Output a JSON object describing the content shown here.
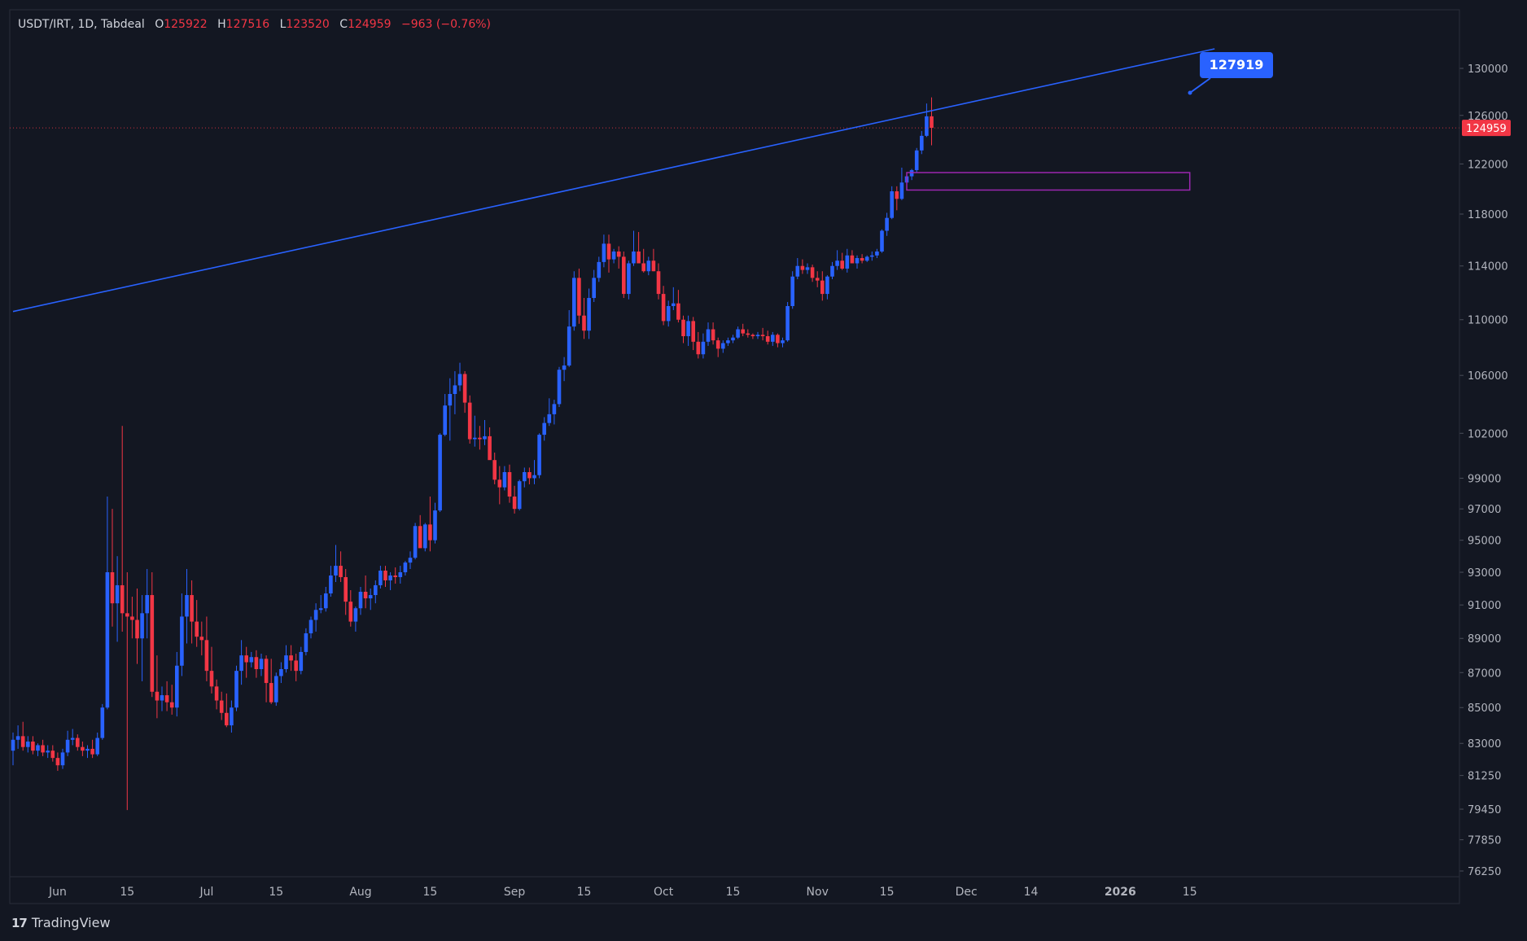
{
  "header": {
    "symbol": "USDT/IRT, 1D, Tabdeal",
    "open_label": "O",
    "open": "125922",
    "high_label": "H",
    "high": "127516",
    "low_label": "L",
    "low": "123520",
    "close_label": "C",
    "close": "124959",
    "change": "−963 (−0.76%)"
  },
  "footer": {
    "brand": "TradingView",
    "logo": "17"
  },
  "colors": {
    "background": "#131722",
    "up": "#2962ff",
    "down": "#f23645",
    "trendline": "#2962ff",
    "zone": "#9c27b0",
    "text": "#b2b5be"
  },
  "chart_data": {
    "type": "candlestick",
    "symbol": "USDT/IRT",
    "interval": "1D",
    "y_axis": {
      "scale": "log",
      "ticks": [
        "130000",
        "126000",
        "122000",
        "118000",
        "114000",
        "110000",
        "106000",
        "102000",
        "99000",
        "97000",
        "95000",
        "93000",
        "91000",
        "89000",
        "87000",
        "85000",
        "83000",
        "81250",
        "79450",
        "77850",
        "76250"
      ]
    },
    "x_axis": {
      "ticks": [
        "Jun",
        "15",
        "Jul",
        "15",
        "Aug",
        "15",
        "Sep",
        "15",
        "Oct",
        "15",
        "Nov",
        "15",
        "Dec",
        "14",
        "2026",
        "15"
      ],
      "tick_dates": [
        "2025-06-01",
        "2025-06-15",
        "2025-07-01",
        "2025-07-15",
        "2025-08-01",
        "2025-08-15",
        "2025-09-01",
        "2025-09-15",
        "2025-10-01",
        "2025-10-15",
        "2025-11-01",
        "2025-11-15",
        "2025-12-01",
        "2025-12-14",
        "2026-01-01",
        "2026-01-15"
      ]
    },
    "start_date": "2025-05-23",
    "last_price": "124959",
    "trendline": {
      "start": [
        "2025-05-23",
        110600
      ],
      "end": [
        "2026-01-20",
        131700
      ]
    },
    "trendline_label": "127919",
    "zone": {
      "from": "2025-11-19",
      "to": "2026-01-15",
      "low": 119900,
      "high": 121300
    },
    "candles_ohlc": [
      [
        82600,
        83600,
        81800,
        83200
      ],
      [
        83200,
        84000,
        82700,
        83400
      ],
      [
        83400,
        84200,
        82600,
        82800
      ],
      [
        82800,
        83400,
        82500,
        83100
      ],
      [
        83100,
        83400,
        82400,
        82600
      ],
      [
        82600,
        83000,
        82300,
        82900
      ],
      [
        82900,
        83200,
        82300,
        82500
      ],
      [
        82500,
        82900,
        82200,
        82600
      ],
      [
        82600,
        82900,
        82000,
        82200
      ],
      [
        82200,
        82500,
        81500,
        81800
      ],
      [
        81800,
        82700,
        81600,
        82500
      ],
      [
        82500,
        83700,
        82300,
        83200
      ],
      [
        83200,
        83800,
        82900,
        83300
      ],
      [
        83300,
        83500,
        82600,
        82800
      ],
      [
        82800,
        83100,
        82300,
        82600
      ],
      [
        82600,
        82900,
        82200,
        82700
      ],
      [
        82700,
        83200,
        82200,
        82400
      ],
      [
        82400,
        83600,
        82300,
        83300
      ],
      [
        83300,
        85200,
        83200,
        85000
      ],
      [
        85000,
        97800,
        84900,
        93000
      ],
      [
        93000,
        97000,
        89700,
        91100
      ],
      [
        91100,
        94000,
        88800,
        92200
      ],
      [
        92200,
        102500,
        89400,
        90500
      ],
      [
        90500,
        93000,
        79400,
        90300
      ],
      [
        90300,
        91500,
        89000,
        90100
      ],
      [
        90100,
        92000,
        87500,
        89000
      ],
      [
        89000,
        91600,
        86500,
        90500
      ],
      [
        90500,
        93200,
        89000,
        91600
      ],
      [
        91600,
        93000,
        85600,
        85900
      ],
      [
        85900,
        88000,
        84400,
        85400
      ],
      [
        85400,
        86200,
        84800,
        85700
      ],
      [
        85700,
        86500,
        84800,
        85300
      ],
      [
        85300,
        86300,
        84600,
        85000
      ],
      [
        85000,
        88200,
        84500,
        87400
      ],
      [
        87400,
        91700,
        86800,
        90300
      ],
      [
        90300,
        93200,
        88700,
        91600
      ],
      [
        91600,
        92500,
        88700,
        90000
      ],
      [
        90000,
        91300,
        88500,
        89100
      ],
      [
        89100,
        90000,
        88000,
        88900
      ],
      [
        88900,
        90300,
        86500,
        87100
      ],
      [
        87100,
        88500,
        85800,
        86200
      ],
      [
        86200,
        86600,
        84900,
        85400
      ],
      [
        85400,
        85900,
        84300,
        84700
      ],
      [
        84700,
        85800,
        83900,
        84000
      ],
      [
        84000,
        85400,
        83600,
        85000
      ],
      [
        85000,
        87400,
        84800,
        87100
      ],
      [
        87100,
        88900,
        86300,
        88000
      ],
      [
        88000,
        88500,
        86700,
        87600
      ],
      [
        87600,
        88200,
        87300,
        87900
      ],
      [
        87900,
        88300,
        86700,
        87200
      ],
      [
        87200,
        88100,
        86800,
        87800
      ],
      [
        87800,
        88000,
        85300,
        86400
      ],
      [
        86400,
        87800,
        85200,
        85300
      ],
      [
        85300,
        87000,
        85100,
        86800
      ],
      [
        86800,
        87600,
        86400,
        87200
      ],
      [
        87200,
        88600,
        87000,
        88000
      ],
      [
        88000,
        88600,
        87100,
        87700
      ],
      [
        87700,
        88100,
        86500,
        87100
      ],
      [
        87100,
        88500,
        86900,
        88200
      ],
      [
        88200,
        89600,
        88000,
        89300
      ],
      [
        89300,
        90300,
        89000,
        90100
      ],
      [
        90100,
        91100,
        89400,
        90700
      ],
      [
        90700,
        91600,
        90500,
        90800
      ],
      [
        90800,
        92100,
        90600,
        91700
      ],
      [
        91700,
        93400,
        91500,
        92800
      ],
      [
        92800,
        94700,
        92400,
        93400
      ],
      [
        93400,
        94300,
        92400,
        92700
      ],
      [
        92700,
        93200,
        90400,
        91200
      ],
      [
        91200,
        91900,
        89700,
        90000
      ],
      [
        90000,
        90900,
        89400,
        90800
      ],
      [
        90800,
        92100,
        90400,
        91800
      ],
      [
        91800,
        92800,
        90800,
        91400
      ],
      [
        91400,
        92000,
        90700,
        91600
      ],
      [
        91600,
        92500,
        91100,
        92200
      ],
      [
        92200,
        93400,
        92000,
        93100
      ],
      [
        93100,
        93400,
        92100,
        92500
      ],
      [
        92500,
        93000,
        91900,
        92800
      ],
      [
        92800,
        93300,
        92300,
        92700
      ],
      [
        92700,
        93400,
        92300,
        93000
      ],
      [
        93000,
        93700,
        92800,
        93600
      ],
      [
        93600,
        94300,
        93200,
        93900
      ],
      [
        93900,
        96100,
        93800,
        95900
      ],
      [
        95900,
        96600,
        94700,
        94500
      ],
      [
        94500,
        96100,
        94300,
        96000
      ],
      [
        96000,
        97800,
        94300,
        95000
      ],
      [
        95000,
        97400,
        94800,
        96900
      ],
      [
        96900,
        102000,
        96800,
        101900
      ],
      [
        101900,
        104700,
        101800,
        103900
      ],
      [
        103900,
        105800,
        101500,
        104700
      ],
      [
        104700,
        106300,
        103300,
        105300
      ],
      [
        105300,
        106900,
        104900,
        106100
      ],
      [
        106100,
        106300,
        103400,
        104100
      ],
      [
        104100,
        104600,
        101300,
        101600
      ],
      [
        101600,
        103200,
        101100,
        101700
      ],
      [
        101700,
        102500,
        100900,
        101600
      ],
      [
        101600,
        102900,
        101200,
        101800
      ],
      [
        101800,
        102400,
        100300,
        100200
      ],
      [
        100200,
        100700,
        98600,
        98900
      ],
      [
        98900,
        99800,
        97300,
        98400
      ],
      [
        98400,
        99800,
        98200,
        99400
      ],
      [
        99400,
        99900,
        97400,
        97800
      ],
      [
        97800,
        98500,
        96700,
        97000
      ],
      [
        97000,
        98900,
        96900,
        98800
      ],
      [
        98800,
        99700,
        98400,
        99400
      ],
      [
        99400,
        99700,
        98600,
        99000
      ],
      [
        99000,
        100200,
        98600,
        99200
      ],
      [
        99200,
        102000,
        99000,
        101900
      ],
      [
        101900,
        103100,
        101500,
        102700
      ],
      [
        102700,
        104400,
        102500,
        103300
      ],
      [
        103300,
        104300,
        102600,
        104000
      ],
      [
        104000,
        106600,
        103800,
        106400
      ],
      [
        106400,
        107300,
        105600,
        106700
      ],
      [
        106700,
        110700,
        106600,
        109500
      ],
      [
        109500,
        113600,
        109200,
        113100
      ],
      [
        113100,
        113800,
        109700,
        110300
      ],
      [
        110300,
        111600,
        108600,
        109200
      ],
      [
        109200,
        112300,
        108600,
        111600
      ],
      [
        111600,
        113700,
        111300,
        113100
      ],
      [
        113100,
        114700,
        112800,
        114300
      ],
      [
        114300,
        116400,
        113900,
        115700
      ],
      [
        115700,
        116400,
        113500,
        114500
      ],
      [
        114500,
        115300,
        114200,
        115100
      ],
      [
        115100,
        115500,
        113800,
        114700
      ],
      [
        114700,
        115100,
        111600,
        111900
      ],
      [
        111900,
        114400,
        111500,
        114200
      ],
      [
        114200,
        116700,
        114000,
        115100
      ],
      [
        115100,
        116600,
        114800,
        114200
      ],
      [
        114200,
        115300,
        113500,
        113600
      ],
      [
        113600,
        114700,
        113300,
        114400
      ],
      [
        114400,
        115300,
        113600,
        113600
      ],
      [
        113600,
        114200,
        111500,
        111900
      ],
      [
        111900,
        112500,
        109600,
        109900
      ],
      [
        109900,
        111400,
        109500,
        111000
      ],
      [
        111000,
        112400,
        110700,
        111200
      ],
      [
        111200,
        112200,
        109800,
        110000
      ],
      [
        110000,
        110300,
        108300,
        108800
      ],
      [
        108800,
        110300,
        108100,
        109900
      ],
      [
        109900,
        110200,
        107800,
        108400
      ],
      [
        108400,
        109100,
        107200,
        107500
      ],
      [
        107500,
        109000,
        107200,
        108400
      ],
      [
        108400,
        109800,
        108100,
        109300
      ],
      [
        109300,
        109800,
        108200,
        108500
      ],
      [
        108500,
        108700,
        107300,
        107900
      ],
      [
        107900,
        108500,
        107600,
        108300
      ],
      [
        108300,
        108700,
        108100,
        108500
      ],
      [
        108500,
        108900,
        108300,
        108700
      ],
      [
        108700,
        109500,
        108600,
        109300
      ],
      [
        109300,
        109700,
        108800,
        109000
      ],
      [
        109000,
        109300,
        108700,
        108900
      ],
      [
        108900,
        109000,
        108600,
        108800
      ],
      [
        108800,
        109100,
        108600,
        108900
      ],
      [
        108900,
        109400,
        108500,
        108800
      ],
      [
        108800,
        109200,
        108200,
        108400
      ],
      [
        108400,
        109100,
        108100,
        108900
      ],
      [
        108900,
        109000,
        108000,
        108300
      ],
      [
        108300,
        108700,
        108000,
        108500
      ],
      [
        108500,
        111300,
        108400,
        111000
      ],
      [
        111000,
        113600,
        110800,
        113200
      ],
      [
        113200,
        114600,
        113000,
        114000
      ],
      [
        114000,
        114500,
        113400,
        113700
      ],
      [
        113700,
        114200,
        113400,
        113900
      ],
      [
        113900,
        114100,
        112800,
        113100
      ],
      [
        113100,
        113600,
        112400,
        112900
      ],
      [
        112900,
        113600,
        111400,
        111900
      ],
      [
        111900,
        113300,
        111500,
        113200
      ],
      [
        113200,
        114300,
        113000,
        114000
      ],
      [
        114000,
        115200,
        113700,
        114400
      ],
      [
        114400,
        115000,
        113700,
        113800
      ],
      [
        113800,
        115300,
        113500,
        114800
      ],
      [
        114800,
        115200,
        114300,
        114200
      ],
      [
        114200,
        114800,
        113800,
        114600
      ],
      [
        114600,
        114900,
        114200,
        114400
      ],
      [
        114400,
        114800,
        114300,
        114700
      ],
      [
        114700,
        115100,
        114400,
        114800
      ],
      [
        114800,
        115300,
        114600,
        115100
      ],
      [
        115100,
        116800,
        115000,
        116700
      ],
      [
        116700,
        118100,
        116300,
        117700
      ],
      [
        117700,
        120200,
        117600,
        119800
      ],
      [
        119800,
        120200,
        118300,
        119200
      ],
      [
        119200,
        121700,
        119100,
        120500
      ],
      [
        120500,
        121200,
        120200,
        121000
      ],
      [
        121000,
        121600,
        120700,
        121500
      ],
      [
        121500,
        123300,
        121300,
        123100
      ],
      [
        123100,
        124700,
        122800,
        124300
      ],
      [
        124300,
        127000,
        124200,
        125922
      ],
      [
        125922,
        127516,
        123520,
        124959
      ]
    ]
  }
}
